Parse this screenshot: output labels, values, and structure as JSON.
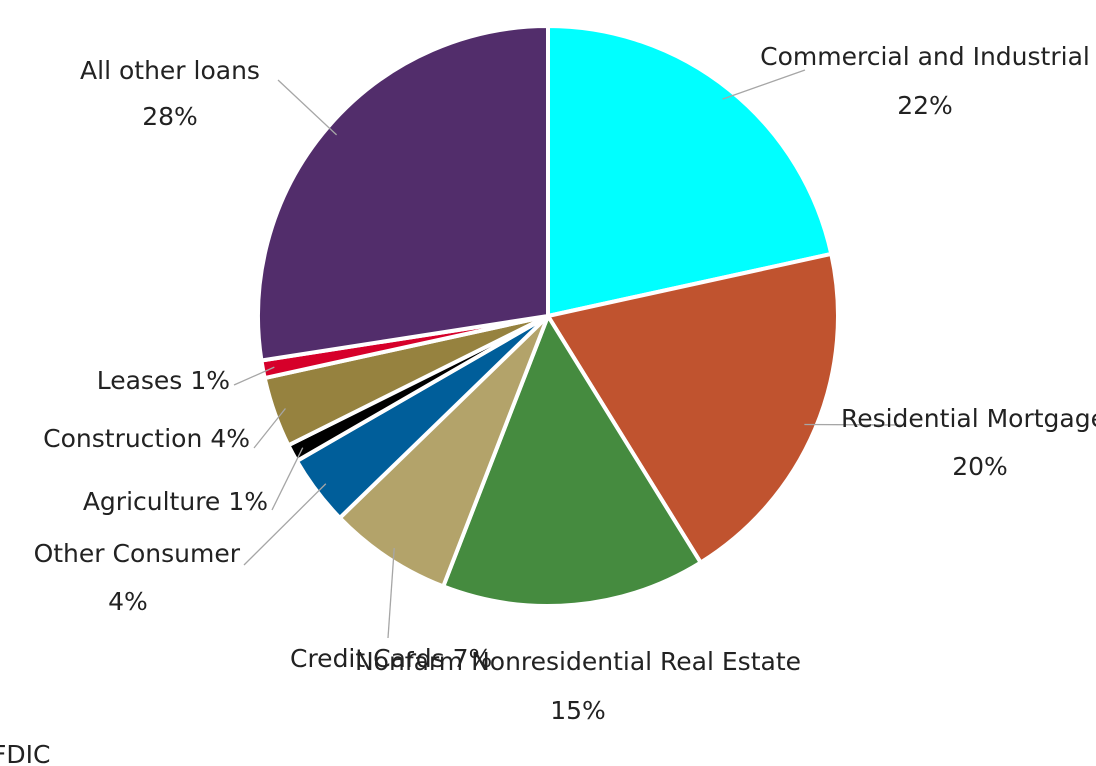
{
  "chart_data": {
    "type": "pie",
    "categories": [
      "Commercial and Industrial",
      "Residential Mortgages",
      "Nonfarm Nonresidential Real Estate",
      "Credit Cards",
      "Other Consumer",
      "Agriculture",
      "Construction",
      "Leases",
      "All other loans"
    ],
    "values": [
      22,
      20,
      15,
      7,
      4,
      1,
      4,
      1,
      28
    ],
    "value_labels": [
      "22%",
      "20%",
      "15%",
      "7%",
      "4%",
      "1%",
      "4%",
      "1%",
      "28%"
    ],
    "colors": [
      "#00ffff",
      "#c0532f",
      "#458b3f",
      "#b3a36a",
      "#005e9a",
      "#000000",
      "#96823f",
      "#d6002a",
      "#522d6b"
    ],
    "source": "FDIC"
  }
}
